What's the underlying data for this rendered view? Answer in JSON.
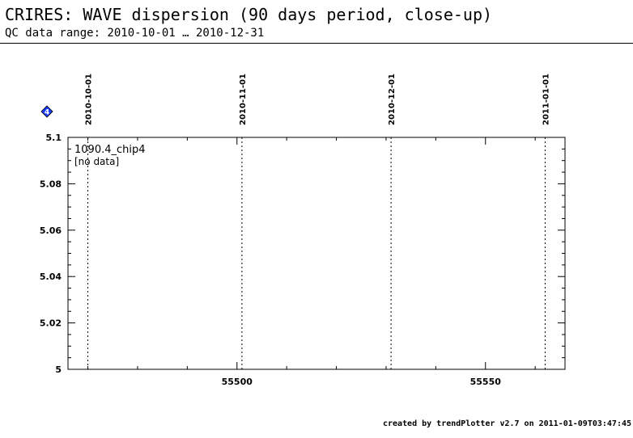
{
  "header": {
    "title": "CRIRES: WAVE dispersion (90 days period, close-up)",
    "subtitle": "QC data range: 2010-10-01 … 2010-12-31"
  },
  "marker": {
    "label": "4",
    "color": "#1a3cff"
  },
  "chart_data": {
    "type": "scatter",
    "panel_label": "1090.4_chip4",
    "status": "[no data]",
    "x": [],
    "y": [],
    "xlim": [
      55466,
      55566
    ],
    "ylim": [
      5,
      5.1
    ],
    "x_ticks": [
      55500,
      55550
    ],
    "y_ticks": [
      "5",
      "5.02",
      "5.04",
      "5.06",
      "5.08",
      "5.1"
    ],
    "y_tick_values": [
      5,
      5.02,
      5.04,
      5.06,
      5.08,
      5.1
    ],
    "date_markers": [
      {
        "label": "2010-10-01",
        "mjd": 55470
      },
      {
        "label": "2010-11-01",
        "mjd": 55501
      },
      {
        "label": "2010-12-01",
        "mjd": 55531
      },
      {
        "label": "2011-01-01",
        "mjd": 55562
      }
    ],
    "grid": false
  },
  "footer": {
    "credit": "created by trendPlotter v2.7 on 2011-01-09T03:47:45"
  }
}
